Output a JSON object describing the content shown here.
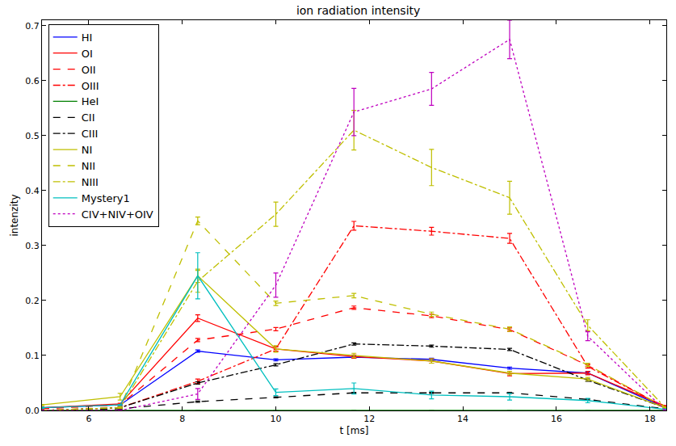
{
  "chart_data": {
    "type": "line",
    "title": "ion radiation intensity",
    "x_label": "t [ms]",
    "y_label": "intenzity",
    "x": [
      5,
      6.67,
      8.33,
      10,
      11.67,
      13.33,
      15,
      16.67,
      18.33
    ],
    "xlim": [
      5,
      18.35
    ],
    "xticks": [
      6,
      8,
      10,
      12,
      14,
      16,
      18
    ],
    "ylim": [
      0,
      0.71
    ],
    "yticks": [
      0.0,
      0.1,
      0.2,
      0.3,
      0.4,
      0.5,
      0.6,
      0.7
    ],
    "grid": false,
    "legend": "upper left",
    "series": [
      {
        "name": "HI",
        "color": "#0000ff",
        "line_style": "solid",
        "values": [
          0.005,
          0.01,
          0.108,
          0.092,
          0.097,
          0.093,
          0.077,
          0.068,
          0.005
        ],
        "errors": [
          0.001,
          0.001,
          0.002,
          0.002,
          0.002,
          0.002,
          0.002,
          0.002,
          0.001
        ]
      },
      {
        "name": "OI",
        "color": "#ff0000",
        "line_style": "solid",
        "values": [
          0.005,
          0.012,
          0.168,
          0.112,
          0.098,
          0.09,
          0.067,
          0.068,
          0.008
        ],
        "errors": [
          0.001,
          0.001,
          0.006,
          0.004,
          0.003,
          0.004,
          0.004,
          0.003,
          0.001
        ]
      },
      {
        "name": "OII",
        "color": "#ff0000",
        "line_style": "dash",
        "values": [
          0.003,
          0.01,
          0.128,
          0.148,
          0.187,
          0.172,
          0.147,
          0.082,
          0.005
        ],
        "errors": [
          0.001,
          0.001,
          0.003,
          0.003,
          0.003,
          0.003,
          0.003,
          0.002,
          0.001
        ]
      },
      {
        "name": "OIII",
        "color": "#ff0000",
        "line_style": "dashdot",
        "values": [
          0.0,
          0.005,
          0.053,
          0.112,
          0.336,
          0.326,
          0.313,
          0.08,
          0.005
        ],
        "errors": [
          0.001,
          0.001,
          0.004,
          0.004,
          0.008,
          0.007,
          0.009,
          0.003,
          0.001
        ]
      },
      {
        "name": "HeI",
        "color": "#008000",
        "line_style": "solid",
        "values": [
          0.0,
          0.0,
          0.0,
          0.0,
          0.0,
          0.0,
          0.0,
          0.0,
          0.0
        ],
        "errors": [
          0.0,
          0.0,
          0.0,
          0.0,
          0.0,
          0.0,
          0.0,
          0.0,
          0.0
        ]
      },
      {
        "name": "CII",
        "color": "#000000",
        "line_style": "dash",
        "values": [
          0.0,
          0.003,
          0.016,
          0.024,
          0.032,
          0.032,
          0.032,
          0.02,
          0.003
        ],
        "errors": [
          0.001,
          0.001,
          0.001,
          0.001,
          0.001,
          0.001,
          0.001,
          0.001,
          0.001
        ]
      },
      {
        "name": "CIII",
        "color": "#000000",
        "line_style": "dashdot",
        "values": [
          0.0,
          0.005,
          0.05,
          0.083,
          0.121,
          0.117,
          0.111,
          0.055,
          0.005
        ],
        "errors": [
          0.001,
          0.001,
          0.002,
          0.002,
          0.002,
          0.002,
          0.002,
          0.002,
          0.001
        ]
      },
      {
        "name": "NI",
        "color": "#bfbf00",
        "line_style": "solid",
        "values": [
          0.01,
          0.025,
          0.245,
          0.112,
          0.1,
          0.09,
          0.068,
          0.057,
          0.005
        ],
        "errors": [
          0.001,
          0.006,
          0.012,
          0.006,
          0.004,
          0.004,
          0.003,
          0.003,
          0.001
        ]
      },
      {
        "name": "NII",
        "color": "#bfbf00",
        "line_style": "dash",
        "values": [
          0.0,
          0.005,
          0.345,
          0.195,
          0.209,
          0.175,
          0.148,
          0.083,
          0.005
        ],
        "errors": [
          0.001,
          0.001,
          0.007,
          0.004,
          0.004,
          0.004,
          0.004,
          0.003,
          0.001
        ]
      },
      {
        "name": "NIII",
        "color": "#bfbf00",
        "line_style": "dashdot",
        "values": [
          0.0,
          0.005,
          0.235,
          0.357,
          0.51,
          0.442,
          0.387,
          0.155,
          0.005
        ],
        "errors": [
          0.001,
          0.001,
          0.02,
          0.022,
          0.036,
          0.033,
          0.03,
          0.01,
          0.001
        ]
      },
      {
        "name": "Mystery1",
        "color": "#00bfbf",
        "line_style": "solid",
        "values": [
          0.005,
          0.01,
          0.245,
          0.033,
          0.04,
          0.028,
          0.025,
          0.018,
          0.002
        ],
        "errors": [
          0.001,
          0.001,
          0.042,
          0.006,
          0.01,
          0.007,
          0.006,
          0.004,
          0.001
        ]
      },
      {
        "name": "CIV+NIV+OIV",
        "color": "#bf00bf",
        "line_style": "dot",
        "values": [
          0.0,
          0.0,
          0.03,
          0.228,
          0.543,
          0.585,
          0.675,
          0.135,
          0.0
        ],
        "errors": [
          0.001,
          0.001,
          0.01,
          0.022,
          0.043,
          0.03,
          0.035,
          0.008,
          0.001
        ]
      }
    ]
  }
}
